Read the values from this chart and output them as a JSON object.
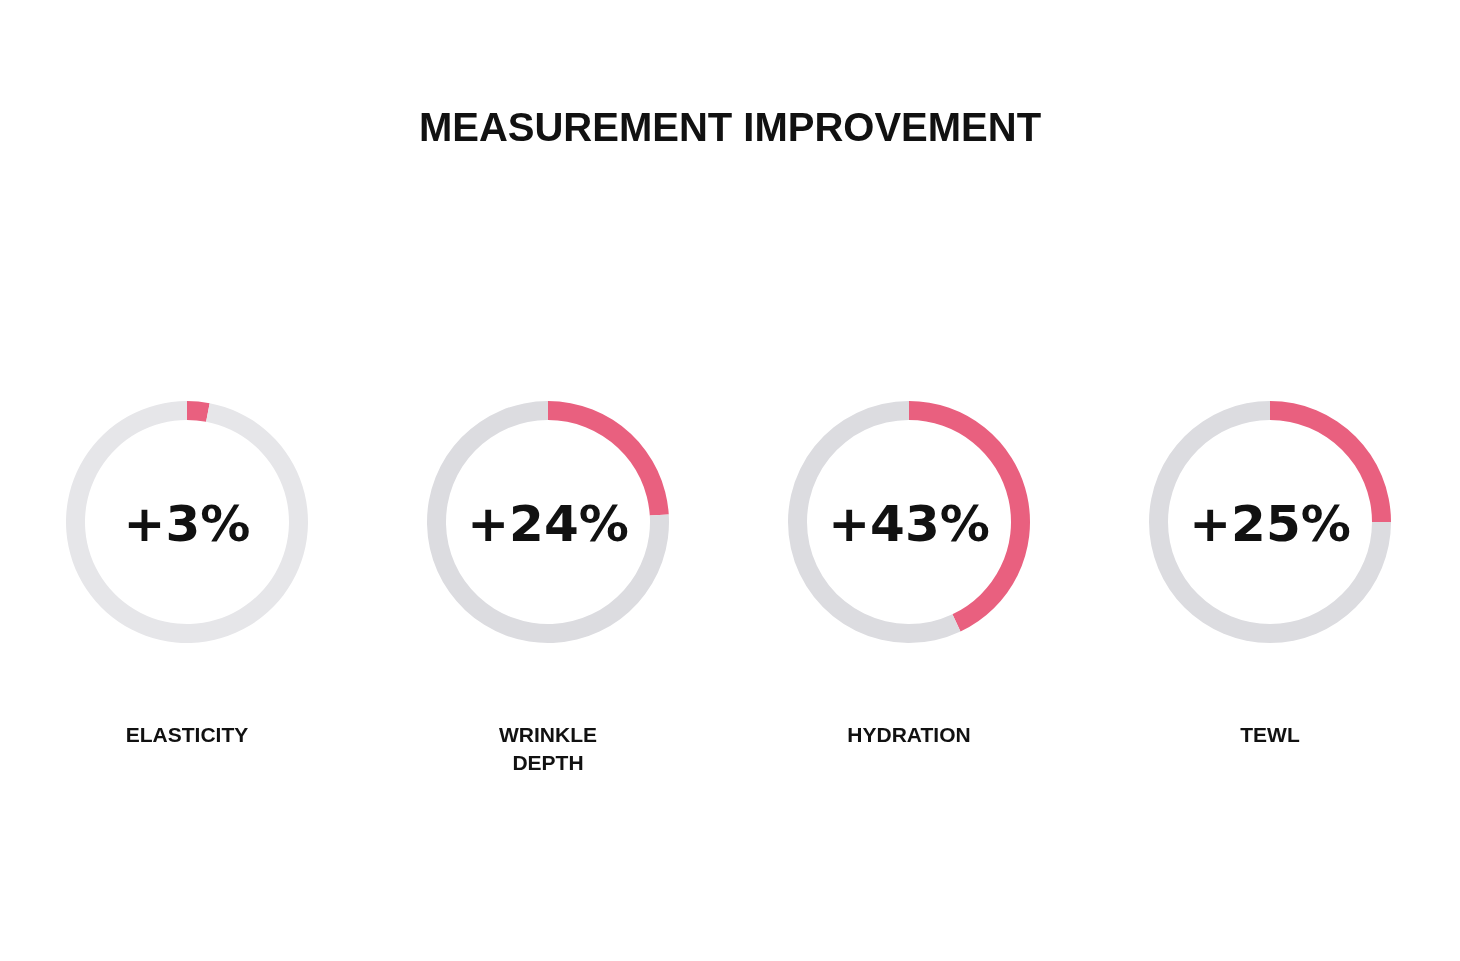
{
  "chart_data": [
    {
      "type": "donut",
      "title": "MEASUREMENT IMPROVEMENT",
      "xlabel": "ELASTICITY",
      "categories": [
        null,
        null
      ],
      "values": [
        3,
        97
      ],
      "colors": [
        "#e9607f",
        "#e6e6e9"
      ],
      "annotations": [
        "+3%"
      ]
    },
    {
      "type": "donut",
      "xlabel": "WRINKLE DEPTH",
      "categories": [
        null,
        null
      ],
      "values": [
        24,
        76
      ],
      "colors": [
        "#e9607f",
        "#dcdce0"
      ],
      "annotations": [
        "+24%"
      ]
    },
    {
      "type": "donut",
      "xlabel": "HYDRATION",
      "categories": [
        null,
        null
      ],
      "values": [
        43,
        57
      ],
      "colors": [
        "#e9607f",
        "#dcdce0"
      ],
      "annotations": [
        "+43%"
      ]
    },
    {
      "type": "donut",
      "xlabel": "TEWL",
      "categories": [
        null,
        null
      ],
      "values": [
        25,
        75
      ],
      "colors": [
        "#e9607f",
        "#dcdce0"
      ],
      "annotations": [
        "+25%"
      ]
    }
  ]
}
